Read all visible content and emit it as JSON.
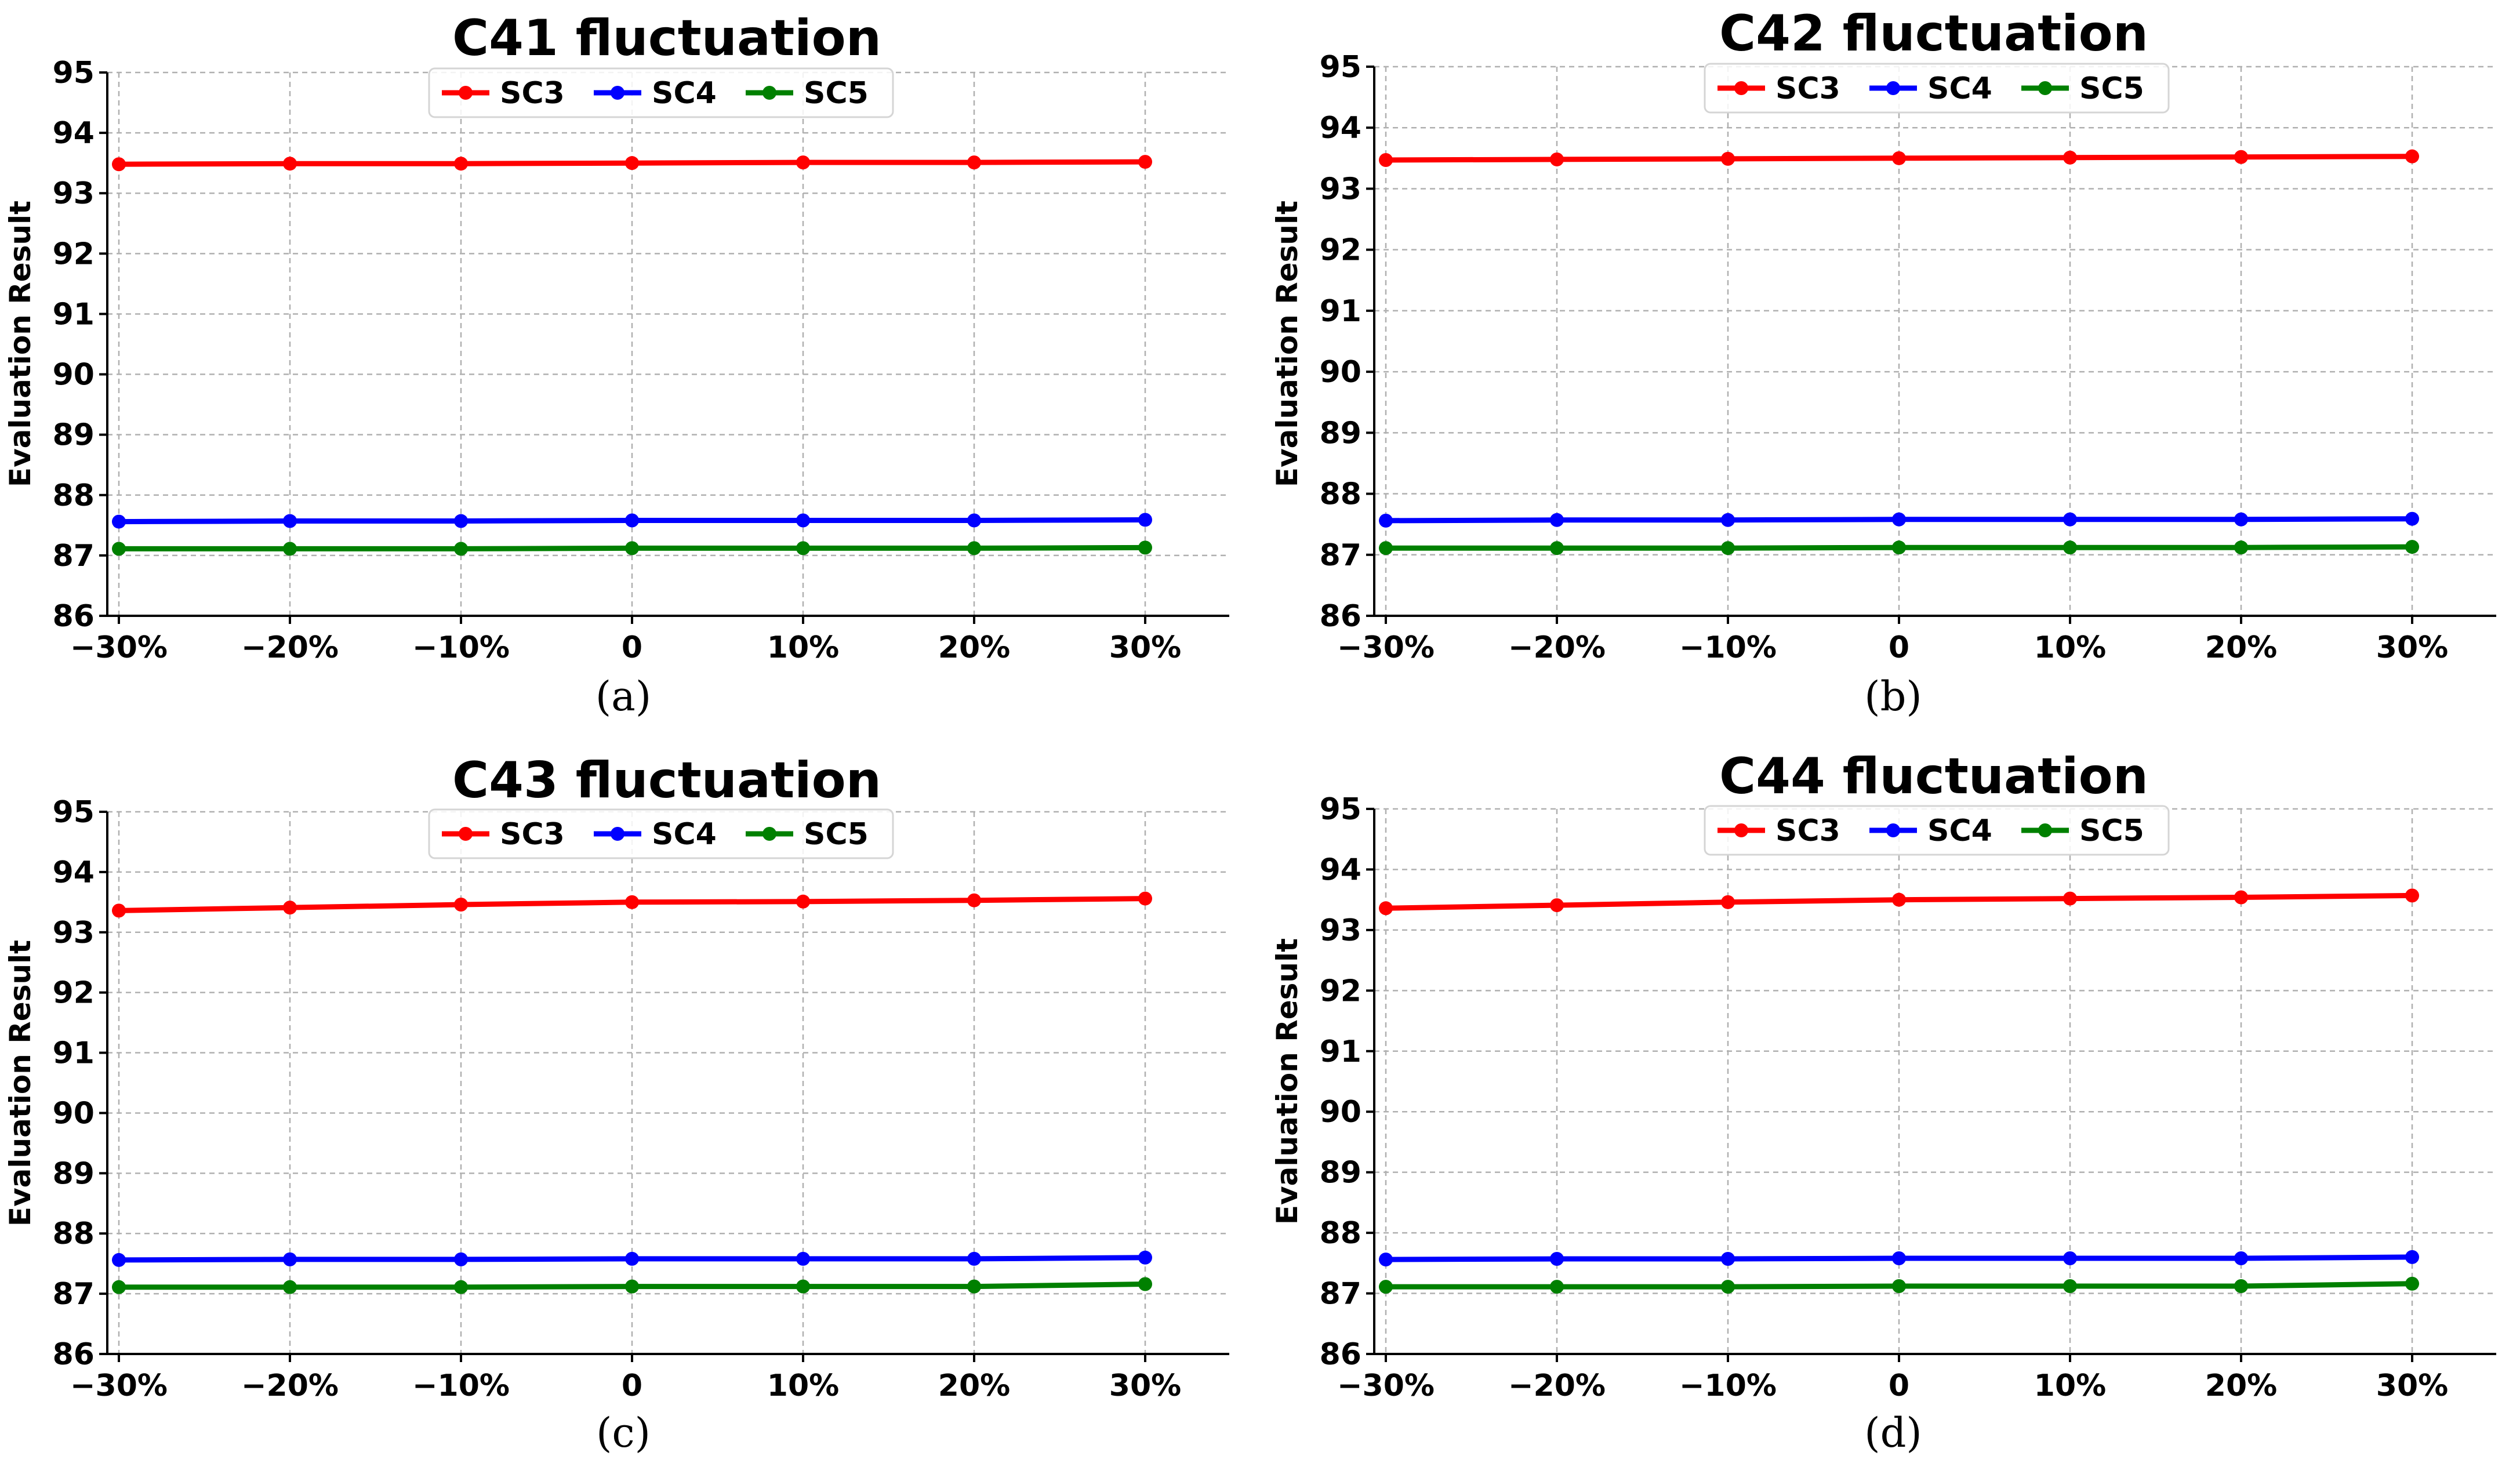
{
  "chart_data": [
    {
      "type": "line",
      "caption": "(a)",
      "title": "C41 fluctuation",
      "ylabel": "Evaluation Result",
      "xlabel": "",
      "categories": [
        "−30%",
        "−20%",
        "−10%",
        "0",
        "10%",
        "20%",
        "30%"
      ],
      "ylim": [
        86,
        95
      ],
      "yticks": [
        "86",
        "87",
        "88",
        "89",
        "90",
        "91",
        "92",
        "93",
        "94",
        "95"
      ],
      "grid": true,
      "legend": "top-center",
      "series": [
        {
          "name": "SC3",
          "color": "#ff0000",
          "values": [
            93.48,
            93.49,
            93.49,
            93.5,
            93.51,
            93.51,
            93.52
          ]
        },
        {
          "name": "SC4",
          "color": "#0000ff",
          "values": [
            87.56,
            87.57,
            87.57,
            87.58,
            87.58,
            87.58,
            87.59
          ]
        },
        {
          "name": "SC5",
          "color": "#008000",
          "values": [
            87.11,
            87.11,
            87.11,
            87.12,
            87.12,
            87.12,
            87.13
          ]
        }
      ]
    },
    {
      "type": "line",
      "caption": "(b)",
      "title": "C42 fluctuation",
      "ylabel": "Evaluation Result",
      "xlabel": "",
      "categories": [
        "−30%",
        "−20%",
        "−10%",
        "0",
        "10%",
        "20%",
        "30%"
      ],
      "ylim": [
        86,
        95
      ],
      "yticks": [
        "86",
        "87",
        "88",
        "89",
        "90",
        "91",
        "92",
        "93",
        "94",
        "95"
      ],
      "grid": true,
      "legend": "top-center",
      "series": [
        {
          "name": "SC3",
          "color": "#ff0000",
          "values": [
            93.47,
            93.48,
            93.49,
            93.5,
            93.51,
            93.52,
            93.53
          ]
        },
        {
          "name": "SC4",
          "color": "#0000ff",
          "values": [
            87.56,
            87.57,
            87.57,
            87.58,
            87.58,
            87.58,
            87.59
          ]
        },
        {
          "name": "SC5",
          "color": "#008000",
          "values": [
            87.11,
            87.11,
            87.11,
            87.12,
            87.12,
            87.12,
            87.13
          ]
        }
      ]
    },
    {
      "type": "line",
      "caption": "(c)",
      "title": "C43 fluctuation",
      "ylabel": "Evaluation Result",
      "xlabel": "",
      "categories": [
        "−30%",
        "−20%",
        "−10%",
        "0",
        "10%",
        "20%",
        "30%"
      ],
      "ylim": [
        86,
        95
      ],
      "yticks": [
        "86",
        "87",
        "88",
        "89",
        "90",
        "91",
        "92",
        "93",
        "94",
        "95"
      ],
      "grid": true,
      "legend": "top-center",
      "series": [
        {
          "name": "SC3",
          "color": "#ff0000",
          "values": [
            93.36,
            93.41,
            93.46,
            93.5,
            93.51,
            93.53,
            93.56
          ]
        },
        {
          "name": "SC4",
          "color": "#0000ff",
          "values": [
            87.56,
            87.57,
            87.57,
            87.58,
            87.58,
            87.58,
            87.6
          ]
        },
        {
          "name": "SC5",
          "color": "#008000",
          "values": [
            87.11,
            87.11,
            87.11,
            87.12,
            87.12,
            87.12,
            87.16
          ]
        }
      ]
    },
    {
      "type": "line",
      "caption": "(d)",
      "title": "C44 fluctuation",
      "ylabel": "Evaluation Result",
      "xlabel": "",
      "categories": [
        "−30%",
        "−20%",
        "−10%",
        "0",
        "10%",
        "20%",
        "30%"
      ],
      "ylim": [
        86,
        95
      ],
      "yticks": [
        "86",
        "87",
        "88",
        "89",
        "90",
        "91",
        "92",
        "93",
        "94",
        "95"
      ],
      "grid": true,
      "legend": "top-center",
      "series": [
        {
          "name": "SC3",
          "color": "#ff0000",
          "values": [
            93.36,
            93.41,
            93.46,
            93.5,
            93.52,
            93.54,
            93.57
          ]
        },
        {
          "name": "SC4",
          "color": "#0000ff",
          "values": [
            87.56,
            87.57,
            87.57,
            87.58,
            87.58,
            87.58,
            87.6
          ]
        },
        {
          "name": "SC5",
          "color": "#008000",
          "values": [
            87.11,
            87.11,
            87.11,
            87.12,
            87.12,
            87.12,
            87.16
          ]
        }
      ]
    }
  ]
}
